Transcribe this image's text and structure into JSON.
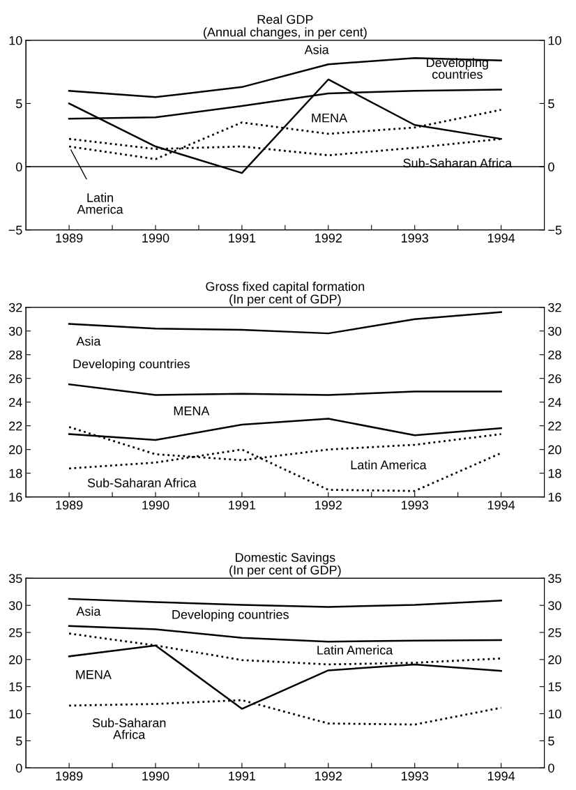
{
  "chart_data": [
    {
      "type": "line",
      "title": "Real GDP\n(Annual changes, in per cent)",
      "x": [
        1989,
        1990,
        1991,
        1992,
        1993,
        1994
      ],
      "xlim": [
        1988.5,
        1994.5
      ],
      "xticks": [
        1989,
        {
          "value": 1989.5,
          "label": null
        },
        1990,
        {
          "value": 1990.5,
          "label": null
        },
        1991,
        {
          "value": 1991.5,
          "label": null
        },
        1992,
        {
          "value": 1992.5,
          "label": null
        },
        1993,
        {
          "value": 1993.5,
          "label": null
        },
        1994
      ],
      "ylim": [
        -5,
        10
      ],
      "yticks": [
        {
          "value": -5,
          "label": "−5"
        },
        0,
        5,
        10
      ],
      "y2lim": [
        -5,
        10
      ],
      "y2ticks": [
        {
          "value": -5,
          "label": "−5"
        },
        0,
        5,
        10
      ],
      "grid": false,
      "marker": "none",
      "ref_lines": [
        {
          "axis": "y",
          "value": 0,
          "color": "#000000"
        }
      ],
      "series": [
        {
          "color": "#000000",
          "line_style": "solid",
          "values": [
            6.0,
            5.5,
            6.3,
            8.1,
            8.6,
            8.4
          ]
        },
        {
          "color": "#000000",
          "line_style": "solid",
          "values": [
            3.8,
            3.9,
            4.8,
            5.8,
            6.0,
            6.1
          ]
        },
        {
          "color": "#000000",
          "line_style": "solid",
          "values": [
            5.0,
            1.6,
            -0.5,
            6.9,
            3.3,
            2.2
          ]
        },
        {
          "color": "#000000",
          "line_style": "dotted",
          "values": [
            1.6,
            0.6,
            3.5,
            2.6,
            3.1,
            4.5
          ]
        },
        {
          "color": "#000000",
          "line_style": "dotted",
          "values": [
            2.2,
            1.4,
            1.6,
            0.9,
            1.5,
            2.2
          ]
        }
      ],
      "annotations": [
        {
          "text": "Asia",
          "x": 1992,
          "y": 8.1
        },
        {
          "text": "Developing\ncountries",
          "x": 1993,
          "y": 6.0
        },
        "MENA",
        {
          "text": "Latin\nAmerica",
          "x": 1989,
          "y": 1.6
        },
        {
          "text": "Sub-Saharan Africa",
          "x": 1993,
          "y": 1.5
        }
      ]
    },
    {
      "type": "line",
      "title": "Gross fixed capital formation\n(In per cent of GDP)",
      "x": [
        1989,
        1990,
        1991,
        1992,
        1993,
        1994
      ],
      "xlim": [
        1988.5,
        1994.5
      ],
      "xticks": [
        1989,
        {
          "value": 1989.5,
          "label": null
        },
        1990,
        {
          "value": 1990.5,
          "label": null
        },
        1991,
        {
          "value": 1991.5,
          "label": null
        },
        1992,
        {
          "value": 1992.5,
          "label": null
        },
        1993,
        {
          "value": 1993.5,
          "label": null
        },
        1994
      ],
      "ylim": [
        16,
        32
      ],
      "yticks": [
        16,
        18,
        20,
        22,
        24,
        26,
        28,
        30,
        32
      ],
      "y2lim": [
        16,
        32
      ],
      "y2ticks": [
        16,
        18,
        20,
        22,
        24,
        26,
        28,
        30,
        32
      ],
      "grid": false,
      "marker": "none",
      "series": [
        {
          "color": "#000000",
          "line_style": "solid",
          "values": [
            30.6,
            30.2,
            30.1,
            29.8,
            31.0,
            31.6
          ]
        },
        {
          "color": "#000000",
          "line_style": "solid",
          "values": [
            25.5,
            24.6,
            24.7,
            24.6,
            24.9,
            24.9
          ]
        },
        {
          "color": "#000000",
          "line_style": "solid",
          "values": [
            21.3,
            20.8,
            22.1,
            22.6,
            21.2,
            21.8
          ]
        },
        {
          "color": "#000000",
          "line_style": "dotted",
          "values": [
            21.9,
            19.6,
            19.1,
            20.0,
            20.4,
            21.3
          ]
        },
        {
          "color": "#000000",
          "line_style": "dotted",
          "values": [
            18.4,
            18.9,
            20.0,
            16.6,
            16.5,
            19.7
          ]
        }
      ],
      "annotations": [
        {
          "text": "Asia",
          "x": 1989,
          "y": 30.6
        },
        {
          "text": "Developing countries",
          "x": 1990,
          "y": 24.6
        },
        {
          "text": "MENA",
          "x": 1990,
          "y": 20.8
        },
        {
          "text": "Latin America",
          "x": 1992,
          "y": 20.0
        },
        {
          "text": "Sub-Saharan Africa",
          "x": 1989,
          "y": 18.4
        }
      ]
    },
    {
      "type": "line",
      "title": "Domestic Savings\n(In per cent of GDP)",
      "x": [
        1989,
        1990,
        1991,
        1992,
        1993,
        1994
      ],
      "xlim": [
        1988.5,
        1994.5
      ],
      "xticks": [
        1989,
        {
          "value": 1989.5,
          "label": null
        },
        1990,
        {
          "value": 1990.5,
          "label": null
        },
        1991,
        {
          "value": 1991.5,
          "label": null
        },
        1992,
        {
          "value": 1992.5,
          "label": null
        },
        1993,
        {
          "value": 1993.5,
          "label": null
        },
        1994
      ],
      "ylim": [
        0,
        35
      ],
      "yticks": [
        0,
        5,
        10,
        15,
        20,
        25,
        30,
        35
      ],
      "y2lim": [
        0,
        35
      ],
      "y2ticks": [
        0,
        5,
        10,
        15,
        20,
        25,
        30,
        35
      ],
      "grid": false,
      "marker": "none",
      "series": [
        {
          "color": "#000000",
          "line_style": "solid",
          "values": [
            31.2,
            30.6,
            30.1,
            29.7,
            30.1,
            30.9
          ]
        },
        {
          "color": "#000000",
          "line_style": "solid",
          "values": [
            26.2,
            25.6,
            24.0,
            23.3,
            23.5,
            23.6
          ]
        },
        {
          "color": "#000000",
          "line_style": "solid",
          "values": [
            20.6,
            22.6,
            10.9,
            18.0,
            19.1,
            17.9
          ]
        },
        {
          "color": "#000000",
          "line_style": "dotted",
          "values": [
            24.8,
            22.6,
            19.9,
            19.1,
            19.4,
            20.2
          ]
        },
        {
          "color": "#000000",
          "line_style": "dotted",
          "values": [
            11.5,
            11.8,
            12.5,
            8.2,
            8.0,
            11.1
          ]
        }
      ],
      "annotations": [
        {
          "text": "Asia",
          "x": 1989,
          "y": 31.2
        },
        {
          "text": "Developing countries",
          "x": 1991,
          "y": 24.0
        },
        {
          "text": "Latin America",
          "x": 1993,
          "y": 19.4
        },
        {
          "text": "MENA",
          "x": 1989,
          "y": 20.6
        },
        {
          "text": "Sub-Saharan\nAfrica",
          "x": 1989,
          "y": 11.5
        }
      ]
    }
  ]
}
